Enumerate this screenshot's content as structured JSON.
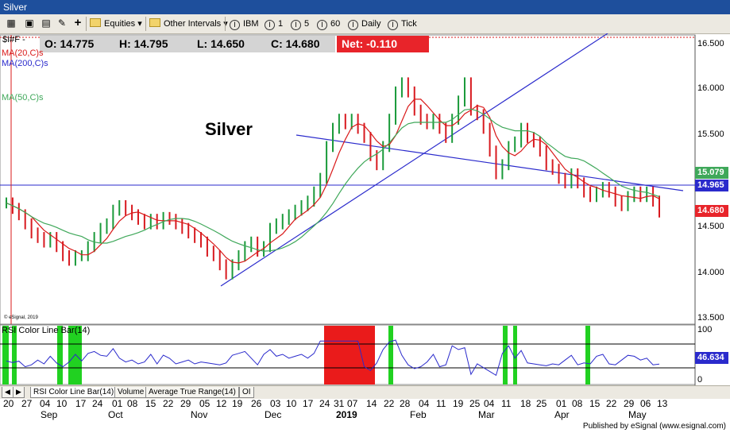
{
  "window": {
    "title": "Silver"
  },
  "toolbar": {
    "symbol_lists": "Equities",
    "intervals": "Other Intervals",
    "items": [
      {
        "key": "I",
        "label": "IBM"
      },
      {
        "key": "I",
        "label": "1"
      },
      {
        "key": "I",
        "label": "5"
      },
      {
        "key": "I",
        "label": "60"
      },
      {
        "key": "I",
        "label": "Daily"
      },
      {
        "key": "I",
        "label": "Tick"
      }
    ]
  },
  "symbol": "$I#F -",
  "quote": {
    "open": "O: 14.775",
    "high": "H: 14.795",
    "low": "L: 14.650",
    "close": "C: 14.680",
    "net": "Net: -0.110"
  },
  "indicators": {
    "ma20": "MA(20,C)s",
    "ma200": "MA(200,C)s",
    "ma50": "MA(50,C)s",
    "rsi": "RSI Color Line Bar(14)"
  },
  "chart_title": "Silver",
  "copyright": "© eSignal, 2019",
  "price_axis": [
    "16.500",
    "16.000",
    "15.500",
    "15.000",
    "14.500",
    "14.000",
    "13.500"
  ],
  "price_tags": {
    "ma50": "15.079",
    "line": "14.965",
    "last": "14.680"
  },
  "rsi_axis": [
    "100",
    "50",
    "0"
  ],
  "rsi_tag": "46.634",
  "tabs": [
    "RSI Color Line Bar(14)",
    "Volume",
    "Average True Range(14)",
    "OI"
  ],
  "dates": {
    "days": [
      "20",
      "27",
      "04",
      "10",
      "17",
      "24",
      "01",
      "08",
      "15",
      "22",
      "29",
      "05",
      "12",
      "19",
      "26",
      "03",
      "10",
      "17",
      "24",
      "31",
      "07",
      "14",
      "22",
      "28",
      "04",
      "11",
      "19",
      "25",
      "04",
      "11",
      "18",
      "25",
      "01",
      "08",
      "15",
      "22",
      "29",
      "06",
      "13"
    ],
    "months": [
      "Sep",
      "Oct",
      "Nov",
      "Dec",
      "2019",
      "Feb",
      "Mar",
      "Apr",
      "May"
    ]
  },
  "footer": "Published by eSignal (www.esignal.com)",
  "colors": {
    "titlebar": "#1e4f9c",
    "up": "#1a9a3a",
    "down": "#d8191f",
    "ma20": "#d91a1a",
    "ma200": "#2a2acc",
    "ma50": "#3fa85a",
    "rsi_alert": "#21d121",
    "rsi_overbought": "#ea1b1b"
  },
  "chart_data": {
    "type": "ohlc",
    "ylim": [
      13.5,
      16.6
    ],
    "close": [
      14.78,
      14.72,
      14.65,
      14.55,
      14.45,
      14.4,
      14.35,
      14.4,
      14.3,
      14.2,
      14.15,
      14.2,
      14.2,
      14.3,
      14.4,
      14.5,
      14.55,
      14.7,
      14.75,
      14.7,
      14.65,
      14.6,
      14.55,
      14.6,
      14.55,
      14.62,
      14.6,
      14.55,
      14.5,
      14.45,
      14.4,
      14.35,
      14.25,
      14.2,
      14.1,
      14.0,
      14.1,
      14.2,
      14.3,
      14.35,
      14.25,
      14.3,
      14.5,
      14.55,
      14.6,
      14.65,
      14.7,
      14.75,
      14.8,
      14.9,
      15.05,
      15.4,
      15.6,
      15.7,
      15.65,
      15.7,
      15.6,
      15.5,
      15.3,
      15.2,
      15.4,
      15.7,
      16.0,
      16.1,
      16.0,
      15.8,
      15.7,
      15.65,
      15.7,
      15.6,
      15.5,
      15.7,
      15.9,
      16.1,
      15.8,
      15.75,
      15.6,
      15.35,
      15.1,
      15.2,
      15.4,
      15.45,
      15.6,
      15.5,
      15.45,
      15.35,
      15.2,
      15.15,
      15.05,
      15.0,
      15.1,
      15.0,
      14.9,
      14.85,
      14.9,
      14.95,
      14.9,
      14.8,
      14.75,
      14.85,
      14.9,
      14.85,
      14.9,
      14.8,
      14.68
    ],
    "ma20_approx": "red",
    "ma50_approx": "green",
    "ma200_approx": "blue"
  }
}
